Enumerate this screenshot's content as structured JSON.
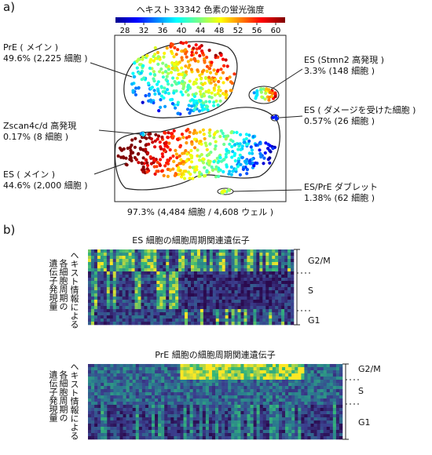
{
  "panel_a": {
    "letter": "a)",
    "colorbar": {
      "title": "ヘキスト 33342 色素の蛍光強度",
      "ticks": [
        "28",
        "32",
        "36",
        "40",
        "44",
        "48",
        "52",
        "56",
        "60"
      ]
    },
    "caption": "97.3% (4,484 細胞 / 4,608 ウェル )",
    "labels": [
      {
        "name": "PrE ( メイン )",
        "stat": "49.6% (2,225 細胞 )"
      },
      {
        "name": "Zscan4c/d 高発現",
        "stat": "0.17% (8 細胞 )"
      },
      {
        "name": "ES ( メイン )",
        "stat": "44.6% (2,000 細胞 )"
      },
      {
        "name": "ES (Stmn2 高発現 )",
        "stat": "3.3% (148 細胞 )"
      },
      {
        "name": "ES ( ダメージを受けた細胞 )",
        "stat": "0.57% (26 細胞 )"
      },
      {
        "name": "ES/PrE ダブレット",
        "stat": "1.38% (62 細胞 )"
      }
    ]
  },
  "panel_b": {
    "letter": "b)",
    "heatmaps": [
      {
        "title": "ES 細胞の細胞周期関連遺伝子",
        "ylabel": [
          "ヘキスト情報による",
          "各細胞周期の",
          "遺伝子発現量"
        ],
        "phases": [
          "G2/M",
          "S",
          "G1"
        ]
      },
      {
        "title": "PrE 細胞の細胞周期関連遺伝子",
        "ylabel": [
          "ヘキスト情報による",
          "各細胞周期の",
          "遺伝子発現量"
        ],
        "phases": [
          "G2/M",
          "S",
          "G1"
        ]
      }
    ]
  },
  "chart_data": [
    {
      "type": "scatter",
      "title": "ヘキスト 33342 色素の蛍光強度",
      "colorbar_range": [
        26,
        62
      ],
      "colorbar_ticks": [
        28,
        32,
        36,
        40,
        44,
        48,
        52,
        56,
        60
      ],
      "clusters": [
        {
          "name": "PrE ( メイン )",
          "percent": 49.6,
          "cells": 2225
        },
        {
          "name": "Zscan4c/d 高発現",
          "percent": 0.17,
          "cells": 8
        },
        {
          "name": "ES ( メイン )",
          "percent": 44.6,
          "cells": 2000
        },
        {
          "name": "ES (Stmn2 高発現 )",
          "percent": 3.3,
          "cells": 148
        },
        {
          "name": "ES ( ダメージを受けた細胞 )",
          "percent": 0.57,
          "cells": 26
        },
        {
          "name": "ES/PrE ダブレット",
          "percent": 1.38,
          "cells": 62
        }
      ],
      "total": {
        "percent": 97.3,
        "cells": 4484,
        "wells": 4608
      }
    },
    {
      "type": "heatmap",
      "title": "ES 細胞の細胞周期関連遺伝子",
      "row_groups": [
        "G2/M",
        "S",
        "G1"
      ],
      "colormap": [
        "#2b0a4e",
        "#3b3f8f",
        "#2a7f8e",
        "#35b779",
        "#fde725"
      ]
    },
    {
      "type": "heatmap",
      "title": "PrE 細胞の細胞周期関連遺伝子",
      "row_groups": [
        "G2/M",
        "S",
        "G1"
      ],
      "colormap": [
        "#2b0a4e",
        "#3b3f8f",
        "#2a7f8e",
        "#35b779",
        "#fde725"
      ]
    }
  ]
}
